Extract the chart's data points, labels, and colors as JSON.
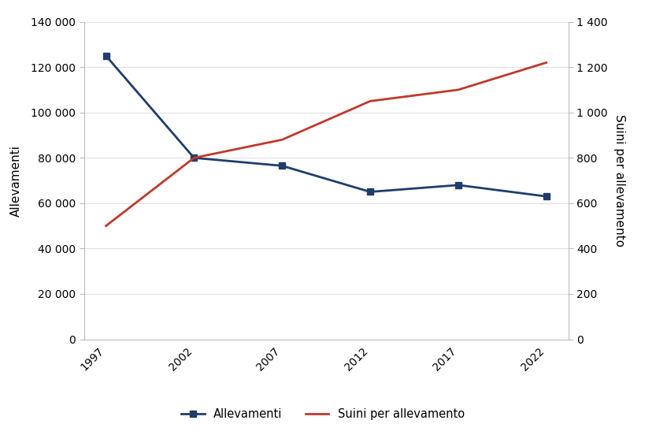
{
  "years": [
    1997,
    2002,
    2007,
    2012,
    2017,
    2022
  ],
  "allevamenti": [
    125000,
    80000,
    76500,
    65000,
    68000,
    63000
  ],
  "suini_per_allevamento": [
    500,
    800,
    880,
    1050,
    1100,
    1220
  ],
  "color_allevamenti": "#1F3D6B",
  "color_suini": "#C0392B",
  "ylabel_left": "Allevamenti",
  "ylabel_right": "Suini per allevamento",
  "ylim_left": [
    0,
    140000
  ],
  "ylim_right": [
    0,
    1400
  ],
  "yticks_left": [
    0,
    20000,
    40000,
    60000,
    80000,
    100000,
    120000,
    140000
  ],
  "yticks_right": [
    0,
    200,
    400,
    600,
    800,
    1000,
    1200,
    1400
  ],
  "legend_allevamenti": "Allevamenti",
  "legend_suini": "Suini per allevamento",
  "bg_color": "#FFFFFF",
  "plot_bg_color": "#FFFFFF",
  "spine_color": "#BBBBBB",
  "grid_color": "#E0E0E0"
}
